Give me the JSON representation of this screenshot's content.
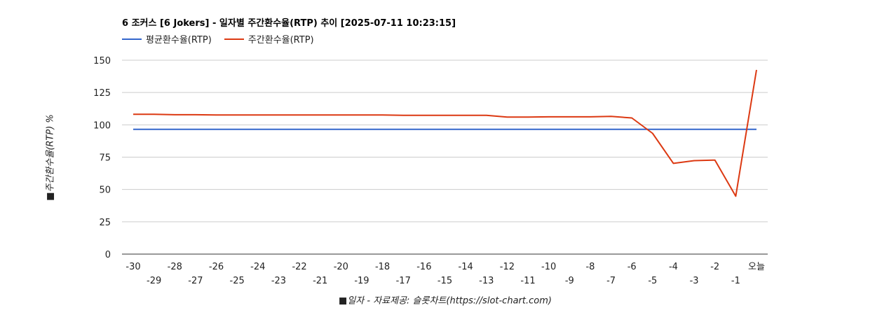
{
  "chart_data": {
    "type": "line",
    "title": "6 조커스 [6 Jokers] - 일자별 주간환수율(RTP) 추이 [2025-07-11 10:23:15]",
    "xlabel": "■일자 - 자료제공: 슬롯차트(https://slot-chart.com)",
    "ylabel": "■주간환수율(RTP) %",
    "x": [
      "-30",
      "-29",
      "-28",
      "-27",
      "-26",
      "-25",
      "-24",
      "-23",
      "-22",
      "-21",
      "-20",
      "-19",
      "-18",
      "-17",
      "-16",
      "-15",
      "-14",
      "-13",
      "-12",
      "-11",
      "-10",
      "-9",
      "-8",
      "-7",
      "-6",
      "-5",
      "-4",
      "-3",
      "-2",
      "-1",
      "오늘"
    ],
    "ylim": [
      0,
      150
    ],
    "yticks": [
      0,
      25,
      50,
      75,
      100,
      125,
      150
    ],
    "grid": true,
    "legend_position": "top-left",
    "series": [
      {
        "name": "평균환수율(RTP)",
        "color": "#3366cc",
        "values": [
          96.5,
          96.5,
          96.5,
          96.5,
          96.5,
          96.5,
          96.5,
          96.5,
          96.5,
          96.5,
          96.5,
          96.5,
          96.5,
          96.5,
          96.5,
          96.5,
          96.5,
          96.5,
          96.5,
          96.5,
          96.5,
          96.5,
          96.5,
          96.5,
          96.5,
          96.5,
          96.5,
          96.5,
          96.5,
          96.5,
          96.5
        ]
      },
      {
        "name": "주간환수율(RTP)",
        "color": "#dc3912",
        "values": [
          108.2,
          108.2,
          107.8,
          107.8,
          107.6,
          107.6,
          107.6,
          107.6,
          107.6,
          107.6,
          107.6,
          107.6,
          107.6,
          107.4,
          107.4,
          107.4,
          107.4,
          107.4,
          106.0,
          106.0,
          106.2,
          106.2,
          106.2,
          106.5,
          105.3,
          93.4,
          70.2,
          72.3,
          72.7,
          44.8,
          142.5
        ]
      }
    ]
  }
}
